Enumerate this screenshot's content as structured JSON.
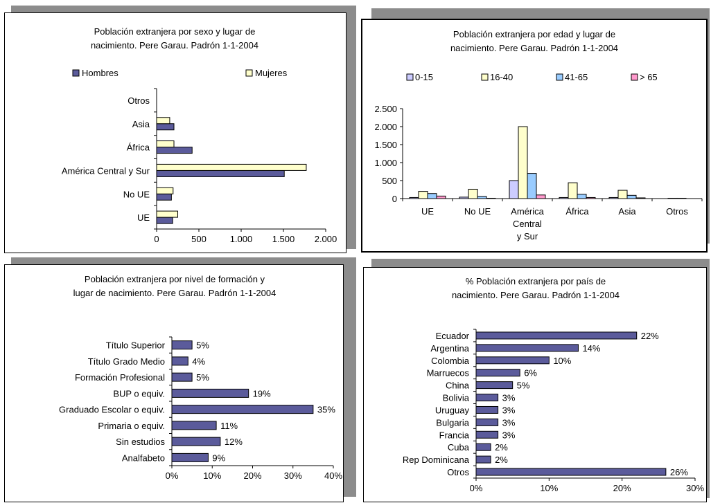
{
  "charts": [
    {
      "type": "bar",
      "orientation": "horizontal",
      "title": [
        "Población extranjera por sexo y lugar de",
        "nacimiento. Pere Garau. Padrón 1-1-2004"
      ],
      "xlabel": "",
      "ylabel": "",
      "categories": [
        "UE",
        "No UE",
        "América Central y Sur",
        "África",
        "Asia",
        "Otros"
      ],
      "series": [
        {
          "name": "Hombres",
          "color": "#5b5b9b",
          "values": [
            190,
            175,
            1510,
            420,
            205,
            0
          ]
        },
        {
          "name": "Mujeres",
          "color": "#ffffcc",
          "values": [
            250,
            195,
            1770,
            205,
            155,
            0
          ]
        }
      ],
      "xlim": [
        0,
        2000
      ],
      "ticks": [
        0,
        500,
        1000,
        1500,
        2000
      ],
      "tick_labels": [
        "0",
        "500",
        "1.000",
        "1.500",
        "2.000"
      ],
      "legend": "top",
      "grid": false
    },
    {
      "type": "bar",
      "orientation": "vertical",
      "title": [
        "Población extranjera por edad y lugar de",
        "nacimiento. Pere Garau. Padrón 1-1-2004"
      ],
      "xlabel": "",
      "ylabel": "",
      "categories": [
        [
          "UE"
        ],
        [
          "No UE"
        ],
        [
          "América",
          "Central",
          "y Sur"
        ],
        [
          "África"
        ],
        [
          "Asia"
        ],
        [
          "Otros"
        ]
      ],
      "series": [
        {
          "name": "0-15",
          "color": "#ccccff",
          "values": [
            30,
            40,
            500,
            30,
            30,
            0
          ]
        },
        {
          "name": "16-40",
          "color": "#ffffcc",
          "values": [
            200,
            260,
            2000,
            440,
            230,
            10
          ]
        },
        {
          "name": "41-65",
          "color": "#99ccff",
          "values": [
            140,
            60,
            700,
            120,
            90,
            10
          ]
        },
        {
          "name": "> 65",
          "color": "#ff99cc",
          "values": [
            70,
            10,
            100,
            30,
            20,
            0
          ]
        }
      ],
      "ylim": [
        0,
        2500
      ],
      "ticks": [
        0,
        500,
        1000,
        1500,
        2000,
        2500
      ],
      "tick_labels": [
        "0",
        "500",
        "1.000",
        "1.500",
        "2.000",
        "2.500"
      ],
      "legend": "top",
      "grid": false
    },
    {
      "type": "bar",
      "orientation": "horizontal",
      "title": [
        "Población extranjera por nivel de formación y",
        "lugar de nacimiento. Pere Garau. Padrón 1-1-2004"
      ],
      "xlabel": "",
      "ylabel": "",
      "categories": [
        "Analfabeto",
        "Sin estudios",
        "Primaria o equiv.",
        "Graduado Escolar o equiv.",
        "BUP o equiv.",
        "Formación Profesional",
        "Título Grado Medio",
        "Título Superior"
      ],
      "series": [
        {
          "name": "",
          "color": "#5b5b9b",
          "values": [
            9,
            12,
            11,
            35,
            19,
            5,
            4,
            5
          ]
        }
      ],
      "value_labels": [
        "9%",
        "12%",
        "11%",
        "35%",
        "19%",
        "5%",
        "4%",
        "5%"
      ],
      "xlim": [
        0,
        40
      ],
      "ticks": [
        0,
        10,
        20,
        30,
        40
      ],
      "tick_labels": [
        "0%",
        "10%",
        "20%",
        "30%",
        "40%"
      ],
      "legend": "none",
      "grid": false
    },
    {
      "type": "bar",
      "orientation": "horizontal",
      "title": [
        "% Población extranjera por país de",
        "nacimiento. Pere Garau. Padrón 1-1-2004"
      ],
      "xlabel": "",
      "ylabel": "",
      "categories": [
        "Otros",
        "Rep Dominicana",
        "Cuba",
        "Francia",
        "Bulgaria",
        "Uruguay",
        "Bolivia",
        "China",
        "Marruecos",
        "Colombia",
        "Argentina",
        "Ecuador"
      ],
      "series": [
        {
          "name": "",
          "color": "#5b5b9b",
          "values": [
            26,
            2,
            2,
            3,
            3,
            3,
            3,
            5,
            6,
            10,
            14,
            22
          ]
        }
      ],
      "value_labels": [
        "26%",
        "2%",
        "2%",
        "3%",
        "3%",
        "3%",
        "3%",
        "5%",
        "6%",
        "10%",
        "14%",
        "22%"
      ],
      "xlim": [
        0,
        30
      ],
      "ticks": [
        0,
        10,
        20,
        30
      ],
      "tick_labels": [
        "0%",
        "10%",
        "20%",
        "30%"
      ],
      "legend": "none",
      "grid": false
    }
  ]
}
